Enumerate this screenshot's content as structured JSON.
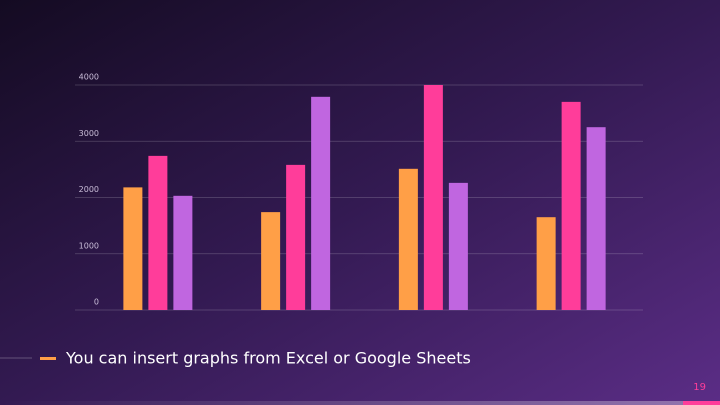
{
  "chart_data": {
    "type": "bar",
    "subtitle": "You can insert graphs from Excel or Google Sheets",
    "page_number": "19",
    "categories": [
      null,
      null,
      null,
      null
    ],
    "series": [
      {
        "color": "#ff9f47",
        "values": [
          2180,
          1740,
          2510,
          1650
        ]
      },
      {
        "color": "#ff3d9a",
        "values": [
          2740,
          2580,
          4000,
          3700
        ]
      },
      {
        "color": "#c066e0",
        "values": [
          2030,
          3790,
          2260,
          3250
        ]
      }
    ],
    "ylim": [
      0,
      4000
    ],
    "yticks": [
      0,
      1000,
      2000,
      3000,
      4000
    ],
    "grid": true
  }
}
